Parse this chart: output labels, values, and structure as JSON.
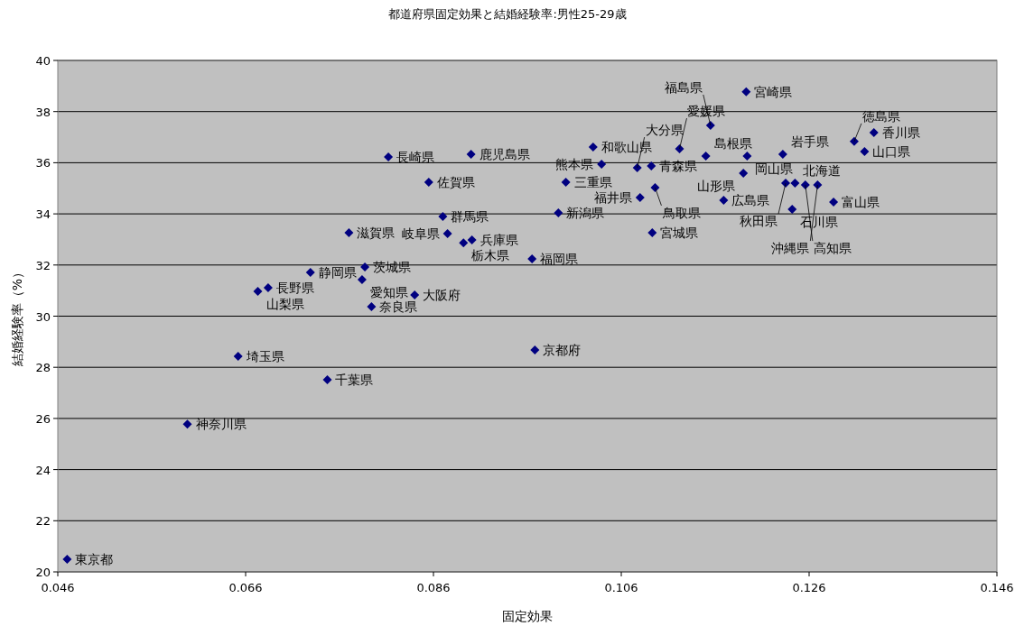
{
  "chart_data": {
    "type": "scatter",
    "title": "都道府県固定効果と結婚経験率:男性25-29歳",
    "xlabel": "固定効果",
    "ylabel": "結婚経験率（%）",
    "xlim": [
      0.046,
      0.146
    ],
    "xticks": [
      0.046,
      0.066,
      0.086,
      0.106,
      0.126,
      0.146
    ],
    "ylim": [
      20,
      40
    ],
    "yticks": [
      20,
      22,
      24,
      26,
      28,
      30,
      32,
      34,
      36,
      38,
      40
    ],
    "grid": "y",
    "marker": "diamond",
    "series": [
      {
        "color": "#000080",
        "x": [
          0.047,
          0.0598,
          0.0652,
          0.0747,
          0.0673,
          0.0684,
          0.0729,
          0.0787,
          0.0784,
          0.0794,
          0.084,
          0.077,
          0.0812,
          0.09,
          0.0855,
          0.087,
          0.0875,
          0.0892,
          0.0901,
          0.0965,
          0.0968,
          0.0993,
          0.1001,
          0.103,
          0.1039,
          0.1077,
          0.1092,
          0.1122,
          0.115,
          0.1194,
          0.1232,
          0.1155,
          0.1193,
          0.119,
          0.1096,
          0.108,
          0.1169,
          0.1093,
          0.1242,
          0.1286,
          0.1308,
          0.1329,
          0.1319,
          0.1235,
          0.1245,
          0.1256,
          0.1269
        ],
        "values": [
          20.49,
          25.78,
          28.43,
          27.51,
          30.97,
          31.11,
          31.71,
          31.92,
          31.43,
          30.37,
          30.83,
          33.26,
          36.23,
          36.33,
          35.24,
          33.9,
          33.23,
          32.87,
          32.98,
          32.24,
          28.68,
          34.04,
          35.24,
          36.61,
          35.94,
          35.8,
          35.87,
          36.54,
          36.26,
          36.26,
          36.33,
          37.46,
          38.77,
          35.59,
          35.03,
          34.64,
          34.53,
          33.26,
          34.18,
          34.46,
          36.83,
          37.18,
          36.44,
          35.2,
          35.2,
          35.13,
          35.13
        ]
      }
    ],
    "annotations": [
      {
        "text": "東京都",
        "x": 0.047,
        "y": 20.49
      },
      {
        "text": "神奈川県",
        "x": 0.0598,
        "y": 25.78
      },
      {
        "text": "埼玉県",
        "x": 0.0652,
        "y": 28.43
      },
      {
        "text": "千葉県",
        "x": 0.0747,
        "y": 27.51
      },
      {
        "text": "山梨県",
        "x": 0.0673,
        "y": 30.97
      },
      {
        "text": "長野県",
        "x": 0.0684,
        "y": 31.11
      },
      {
        "text": "静岡県",
        "x": 0.0729,
        "y": 31.71
      },
      {
        "text": "茨城県",
        "x": 0.0787,
        "y": 31.92
      },
      {
        "text": "愛知県",
        "x": 0.0784,
        "y": 31.43
      },
      {
        "text": "奈良県",
        "x": 0.0794,
        "y": 30.37
      },
      {
        "text": "大阪府",
        "x": 0.084,
        "y": 30.83
      },
      {
        "text": "滋賀県",
        "x": 0.077,
        "y": 33.26
      },
      {
        "text": "長崎県",
        "x": 0.0812,
        "y": 36.23
      },
      {
        "text": "鹿児島県",
        "x": 0.09,
        "y": 36.33
      },
      {
        "text": "佐賀県",
        "x": 0.0855,
        "y": 35.24
      },
      {
        "text": "群馬県",
        "x": 0.087,
        "y": 33.9
      },
      {
        "text": "岐阜県",
        "x": 0.0875,
        "y": 33.23
      },
      {
        "text": "栃木県",
        "x": 0.0892,
        "y": 32.87
      },
      {
        "text": "兵庫県",
        "x": 0.0901,
        "y": 32.98
      },
      {
        "text": "福岡県",
        "x": 0.0965,
        "y": 32.24
      },
      {
        "text": "京都府",
        "x": 0.0968,
        "y": 28.68
      },
      {
        "text": "新潟県",
        "x": 0.0993,
        "y": 34.04
      },
      {
        "text": "三重県",
        "x": 0.1001,
        "y": 35.24
      },
      {
        "text": "和歌山県",
        "x": 0.103,
        "y": 36.61
      },
      {
        "text": "熊本県",
        "x": 0.1039,
        "y": 35.94
      },
      {
        "text": "大分県",
        "x": 0.1077,
        "y": 35.8
      },
      {
        "text": "青森県",
        "x": 0.1092,
        "y": 35.87
      },
      {
        "text": "愛媛県",
        "x": 0.1122,
        "y": 36.54
      },
      {
        "text": "島根県",
        "x": 0.115,
        "y": 36.26
      },
      {
        "text": "岡山県",
        "x": 0.1194,
        "y": 36.26
      },
      {
        "text": "岩手県",
        "x": 0.1232,
        "y": 36.33
      },
      {
        "text": "福島県",
        "x": 0.1155,
        "y": 37.46
      },
      {
        "text": "宮崎県",
        "x": 0.1193,
        "y": 38.77
      },
      {
        "text": "山形県",
        "x": 0.119,
        "y": 35.59
      },
      {
        "text": "鳥取県",
        "x": 0.1096,
        "y": 35.03
      },
      {
        "text": "福井県",
        "x": 0.108,
        "y": 34.64
      },
      {
        "text": "広島県",
        "x": 0.1169,
        "y": 34.53
      },
      {
        "text": "宮城県",
        "x": 0.1093,
        "y": 33.26
      },
      {
        "text": "石川県",
        "x": 0.1242,
        "y": 34.18
      },
      {
        "text": "富山県",
        "x": 0.1286,
        "y": 34.46
      },
      {
        "text": "徳島県",
        "x": 0.1308,
        "y": 36.83
      },
      {
        "text": "香川県",
        "x": 0.1329,
        "y": 37.18
      },
      {
        "text": "山口県",
        "x": 0.1319,
        "y": 36.44
      },
      {
        "text": "秋田県",
        "x": 0.1235,
        "y": 35.2
      },
      {
        "text": "北海道",
        "x": 0.1245,
        "y": 35.2
      },
      {
        "text": "高知県",
        "x": 0.1256,
        "y": 35.13
      },
      {
        "text": "沖縄県",
        "x": 0.1269,
        "y": 35.13
      }
    ]
  }
}
